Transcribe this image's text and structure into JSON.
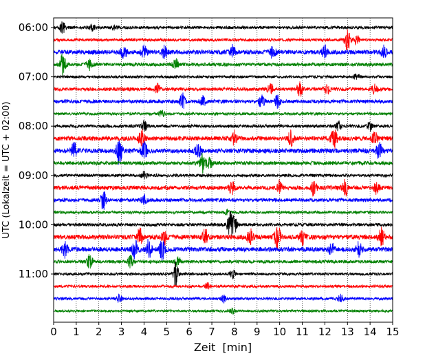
{
  "chart_data": {
    "type": "line",
    "title": "",
    "xlabel": "Zeit  [min]",
    "ylabel": "UTC (Lokalzeit = UTC + 02:00)",
    "xlim": [
      0,
      15
    ],
    "x_ticks": [
      "0",
      "1",
      "2",
      "3",
      "4",
      "5",
      "6",
      "7",
      "8",
      "9",
      "10",
      "11",
      "12",
      "13",
      "14",
      "15"
    ],
    "y_tick_labels": [
      "06:00",
      "07:00",
      "08:00",
      "09:00",
      "10:00",
      "11:00"
    ],
    "row_interval_minutes": 15,
    "row_start": "06:00",
    "rows": [
      {
        "start": "06:00",
        "color": "#000000",
        "activity": 0.25,
        "events": [
          [
            0.4,
            0.6
          ],
          [
            1.7,
            0.3
          ],
          [
            2.7,
            0.3
          ]
        ]
      },
      {
        "start": "06:15",
        "color": "#ff0000",
        "activity": 0.25,
        "events": [
          [
            13.0,
            1.2
          ],
          [
            13.4,
            0.5
          ]
        ]
      },
      {
        "start": "06:30",
        "color": "#0000ff",
        "activity": 0.55,
        "events": [
          [
            3.1,
            0.7
          ],
          [
            4.0,
            0.6
          ],
          [
            4.9,
            0.6
          ],
          [
            7.9,
            0.7
          ],
          [
            9.7,
            0.6
          ],
          [
            12.0,
            0.6
          ],
          [
            14.6,
            0.6
          ]
        ]
      },
      {
        "start": "06:45",
        "color": "#008000",
        "activity": 0.35,
        "events": [
          [
            0.4,
            1.1
          ],
          [
            1.6,
            0.5
          ],
          [
            5.4,
            0.6
          ]
        ]
      },
      {
        "start": "07:00",
        "color": "#000000",
        "activity": 0.2,
        "events": [
          [
            13.4,
            0.3
          ]
        ]
      },
      {
        "start": "07:15",
        "color": "#ff0000",
        "activity": 0.35,
        "events": [
          [
            4.6,
            0.5
          ],
          [
            9.6,
            0.6
          ],
          [
            10.9,
            0.7
          ],
          [
            12.1,
            0.5
          ],
          [
            14.2,
            0.5
          ]
        ]
      },
      {
        "start": "07:30",
        "color": "#0000ff",
        "activity": 0.4,
        "events": [
          [
            5.7,
            0.8
          ],
          [
            6.6,
            0.5
          ],
          [
            9.2,
            0.7
          ],
          [
            9.9,
            0.6
          ]
        ]
      },
      {
        "start": "07:45",
        "color": "#008000",
        "activity": 0.2,
        "events": [
          [
            4.8,
            0.3
          ]
        ]
      },
      {
        "start": "08:00",
        "color": "#000000",
        "activity": 0.3,
        "events": [
          [
            4.0,
            0.5
          ],
          [
            12.6,
            0.5
          ],
          [
            14.0,
            0.5
          ]
        ]
      },
      {
        "start": "08:15",
        "color": "#ff0000",
        "activity": 0.55,
        "events": [
          [
            3.9,
            1.0
          ],
          [
            8.0,
            0.7
          ],
          [
            10.5,
            0.8
          ],
          [
            12.4,
            1.2
          ],
          [
            14.2,
            0.7
          ]
        ]
      },
      {
        "start": "08:30",
        "color": "#0000ff",
        "activity": 0.6,
        "events": [
          [
            0.9,
            0.8
          ],
          [
            2.9,
            1.4
          ],
          [
            4.0,
            1.1
          ],
          [
            6.4,
            0.7
          ],
          [
            14.4,
            0.8
          ]
        ]
      },
      {
        "start": "08:45",
        "color": "#008000",
        "activity": 0.4,
        "events": [
          [
            6.6,
            1.0
          ],
          [
            6.9,
            0.6
          ]
        ]
      },
      {
        "start": "09:00",
        "color": "#000000",
        "activity": 0.25,
        "events": [
          [
            4.0,
            0.4
          ]
        ]
      },
      {
        "start": "09:15",
        "color": "#ff0000",
        "activity": 0.5,
        "events": [
          [
            7.9,
            0.8
          ],
          [
            10.0,
            0.7
          ],
          [
            11.5,
            0.7
          ],
          [
            12.9,
            0.8
          ],
          [
            14.3,
            0.6
          ]
        ]
      },
      {
        "start": "09:30",
        "color": "#0000ff",
        "activity": 0.35,
        "events": [
          [
            2.2,
            1.0
          ],
          [
            4.0,
            0.5
          ]
        ]
      },
      {
        "start": "09:45",
        "color": "#008000",
        "activity": 0.2,
        "events": [
          [
            7.7,
            0.3
          ]
        ]
      },
      {
        "start": "10:00",
        "color": "#000000",
        "activity": 0.3,
        "events": [
          [
            7.8,
            1.2
          ],
          [
            8.0,
            0.8
          ]
        ]
      },
      {
        "start": "10:15",
        "color": "#ff0000",
        "activity": 0.6,
        "events": [
          [
            3.8,
            0.9
          ],
          [
            4.9,
            0.8
          ],
          [
            6.7,
            0.9
          ],
          [
            8.7,
            0.8
          ],
          [
            9.9,
            1.4
          ],
          [
            11.0,
            0.7
          ],
          [
            14.5,
            0.9
          ]
        ]
      },
      {
        "start": "10:30",
        "color": "#0000ff",
        "activity": 0.6,
        "events": [
          [
            0.5,
            0.8
          ],
          [
            3.6,
            0.9
          ],
          [
            4.2,
            1.0
          ],
          [
            4.8,
            1.0
          ],
          [
            12.3,
            0.6
          ],
          [
            13.5,
            0.7
          ]
        ]
      },
      {
        "start": "10:45",
        "color": "#008000",
        "activity": 0.3,
        "events": [
          [
            1.6,
            0.7
          ],
          [
            3.4,
            0.6
          ],
          [
            5.5,
            0.5
          ]
        ]
      },
      {
        "start": "11:00",
        "color": "#000000",
        "activity": 0.2,
        "events": [
          [
            5.4,
            1.2
          ],
          [
            7.9,
            0.5
          ]
        ]
      },
      {
        "start": "11:15",
        "color": "#ff0000",
        "activity": 0.2,
        "events": [
          [
            6.8,
            0.3
          ]
        ]
      },
      {
        "start": "11:30",
        "color": "#0000ff",
        "activity": 0.2,
        "events": [
          [
            2.9,
            0.4
          ],
          [
            7.5,
            0.4
          ],
          [
            12.7,
            0.4
          ]
        ]
      },
      {
        "start": "11:45",
        "color": "#008000",
        "activity": 0.15,
        "events": [
          [
            7.9,
            0.3
          ]
        ]
      }
    ]
  }
}
